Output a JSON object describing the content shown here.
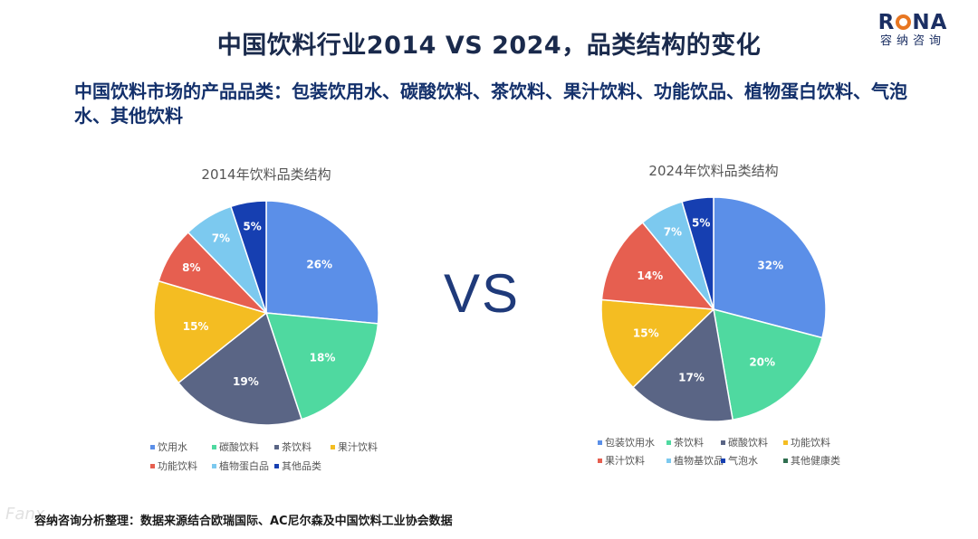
{
  "header": {
    "title": "中国饮料行业2014 VS 2024，品类结构的变化",
    "subtitle": "中国饮料市场的产品品类：包装饮用水、碳酸饮料、茶饮料、果汁饮料、功能饮品、植物蛋白饮料、气泡水、其他饮料"
  },
  "logo": {
    "text_r": "R",
    "text_na": "NA",
    "sub": "容纳咨询"
  },
  "vs_text": "VS",
  "footer": "容纳咨询分析整理：数据来源结合欧瑞国际、AC尼尔森及中国饮料工业协会数据",
  "watermark": "Fanx",
  "chart_data": [
    {
      "type": "pie",
      "title": "2014年饮料品类结构",
      "categories": [
        "饮用水",
        "碳酸饮料",
        "茶饮料",
        "果汁饮料",
        "功能饮料",
        "植物蛋白品",
        "其他品类"
      ],
      "values": [
        26,
        18,
        19,
        15,
        8,
        7,
        5
      ],
      "labels": [
        "26%",
        "18%",
        "19%",
        "15%",
        "8%",
        "7%",
        "5%"
      ],
      "colors": [
        "#5b8fe8",
        "#4fd9a0",
        "#5a6585",
        "#f4bd22",
        "#e65f50",
        "#7cc9ef",
        "#163fb1"
      ],
      "legend_position": "bottom"
    },
    {
      "type": "pie",
      "title": "2024年饮料品类结构",
      "categories": [
        "包装饮用水",
        "茶饮料",
        "碳酸饮料",
        "功能饮料",
        "果汁饮料",
        "植物基饮品",
        "气泡水",
        "其他健康类"
      ],
      "values": [
        32,
        20,
        17,
        15,
        14,
        7,
        5,
        0
      ],
      "labels": [
        "32%",
        "20%",
        "17%",
        "15%",
        "14%",
        "7%",
        "5%",
        ""
      ],
      "colors": [
        "#5b8fe8",
        "#4fd9a0",
        "#5a6585",
        "#f4bd22",
        "#e65f50",
        "#7cc9ef",
        "#163fb1",
        "#2f6e4f"
      ],
      "legend_position": "bottom"
    }
  ]
}
